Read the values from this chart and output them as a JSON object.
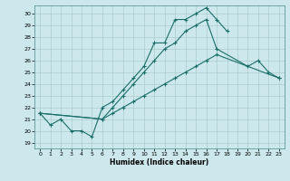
{
  "title": "",
  "xlabel": "Humidex (Indice chaleur)",
  "background_color": "#cce8ec",
  "grid_color": "#aacccc",
  "line_color": "#1a6e6a",
  "xlim": [
    -0.5,
    23.5
  ],
  "ylim": [
    18.5,
    30.7
  ],
  "yticks": [
    19,
    20,
    21,
    22,
    23,
    24,
    25,
    26,
    27,
    28,
    29,
    30
  ],
  "xticks": [
    0,
    1,
    2,
    3,
    4,
    5,
    6,
    7,
    8,
    9,
    10,
    11,
    12,
    13,
    14,
    15,
    16,
    17,
    18,
    19,
    20,
    21,
    22,
    23
  ],
  "lines": [
    {
      "x": [
        0,
        1,
        2,
        3,
        4,
        5,
        6,
        7,
        8,
        9,
        10,
        11,
        12,
        13,
        14,
        15,
        16,
        17,
        18
      ],
      "y": [
        21.5,
        20.5,
        21.0,
        20.0,
        20.0,
        19.5,
        22.0,
        22.5,
        23.5,
        24.5,
        25.5,
        27.5,
        27.5,
        29.5,
        29.5,
        30.0,
        30.5,
        29.5,
        28.5
      ]
    },
    {
      "x": [
        0,
        6,
        7,
        8,
        9,
        10,
        11,
        12,
        13,
        14,
        15,
        16,
        17,
        20,
        21,
        22,
        23
      ],
      "y": [
        21.5,
        21.0,
        22.0,
        23.0,
        24.0,
        25.0,
        26.0,
        27.0,
        27.5,
        28.5,
        29.0,
        29.5,
        27.0,
        25.5,
        26.0,
        25.0,
        24.5
      ]
    },
    {
      "x": [
        0,
        6,
        7,
        8,
        9,
        10,
        11,
        12,
        13,
        14,
        15,
        16,
        17,
        23
      ],
      "y": [
        21.5,
        21.0,
        21.5,
        22.0,
        22.5,
        23.0,
        23.5,
        24.0,
        24.5,
        25.0,
        25.5,
        26.0,
        26.5,
        24.5
      ]
    }
  ]
}
